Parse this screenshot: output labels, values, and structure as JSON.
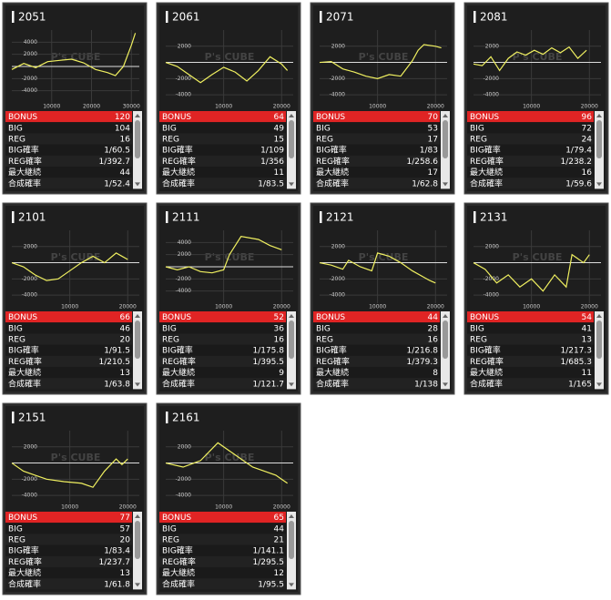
{
  "watermark": "P's CUBE",
  "row_labels": [
    "BONUS",
    "BIG",
    "REG",
    "BIG確率",
    "REG確率",
    "最大継続",
    "合成確率"
  ],
  "cards": [
    {
      "id": "2051",
      "chart": {
        "type": "line",
        "color": "#f0f060",
        "xlim": [
          0,
          32000
        ],
        "xticks": [
          10000,
          20000,
          30000
        ],
        "ylim": [
          -6000,
          6000
        ],
        "yticks": [
          4000,
          2000,
          -2000,
          -4000
        ],
        "x": [
          0,
          3000,
          6000,
          9000,
          12000,
          15000,
          18000,
          21000,
          24000,
          26000,
          28000,
          30000,
          31000
        ],
        "y": [
          -500,
          500,
          -200,
          800,
          1000,
          1200,
          600,
          -500,
          -1000,
          -1500,
          0,
          3500,
          5500
        ]
      },
      "stats": [
        120,
        104,
        16,
        "1/60.5",
        "1/392.7",
        44,
        "1/52.4"
      ]
    },
    {
      "id": "2061",
      "chart": {
        "type": "line",
        "color": "#f0f060",
        "xlim": [
          0,
          22000
        ],
        "xticks": [
          10000,
          20000
        ],
        "ylim": [
          -5000,
          4000
        ],
        "yticks": [
          2000,
          -2000,
          -4000
        ],
        "x": [
          0,
          2000,
          4000,
          6000,
          8000,
          10000,
          12000,
          14000,
          16000,
          18000,
          20000,
          21000
        ],
        "y": [
          0,
          -500,
          -1500,
          -2500,
          -1500,
          -600,
          -1200,
          -2300,
          -1000,
          700,
          -200,
          -1000
        ]
      },
      "stats": [
        64,
        49,
        15,
        "1/109",
        "1/356",
        11,
        "1/83.5"
      ]
    },
    {
      "id": "2071",
      "chart": {
        "type": "line",
        "color": "#f0f060",
        "xlim": [
          0,
          22000
        ],
        "xticks": [
          10000,
          20000
        ],
        "ylim": [
          -5000,
          4000
        ],
        "yticks": [
          2000,
          -2000,
          -4000
        ],
        "x": [
          0,
          2000,
          4000,
          6000,
          8000,
          10000,
          12000,
          14000,
          16000,
          17000,
          18000,
          20000,
          21000
        ],
        "y": [
          0,
          100,
          -800,
          -1200,
          -1700,
          -2000,
          -1500,
          -1700,
          200,
          1500,
          2200,
          2000,
          1800
        ]
      },
      "stats": [
        70,
        53,
        17,
        "1/83",
        "1/258.6",
        17,
        "1/62.8"
      ]
    },
    {
      "id": "2081",
      "chart": {
        "type": "line",
        "color": "#f0f060",
        "xlim": [
          0,
          22000
        ],
        "xticks": [
          10000,
          20000
        ],
        "ylim": [
          -5000,
          4000
        ],
        "yticks": [
          2000,
          -2000,
          -4000
        ],
        "x": [
          0,
          1500,
          3000,
          4500,
          6000,
          7500,
          9000,
          10500,
          12000,
          13500,
          15000,
          16500,
          18000,
          19500
        ],
        "y": [
          -200,
          -400,
          700,
          -1000,
          500,
          1300,
          900,
          1500,
          1000,
          1800,
          1200,
          1900,
          500,
          1500
        ]
      },
      "stats": [
        96,
        72,
        24,
        "1/79.4",
        "1/238.2",
        16,
        "1/59.6"
      ]
    },
    {
      "id": "2101",
      "chart": {
        "type": "line",
        "color": "#f0f060",
        "xlim": [
          0,
          22000
        ],
        "xticks": [
          10000,
          20000
        ],
        "ylim": [
          -5000,
          4000
        ],
        "yticks": [
          2000,
          -2000,
          -4000
        ],
        "x": [
          0,
          2000,
          4000,
          6000,
          8000,
          10000,
          12000,
          14000,
          16000,
          18000,
          19000,
          20000
        ],
        "y": [
          0,
          -500,
          -1500,
          -2200,
          -2000,
          -1000,
          0,
          800,
          0,
          1200,
          800,
          400
        ]
      },
      "stats": [
        66,
        46,
        20,
        "1/91.5",
        "1/210.5",
        13,
        "1/63.8"
      ]
    },
    {
      "id": "2111",
      "chart": {
        "type": "line",
        "color": "#f0f060",
        "xlim": [
          0,
          22000
        ],
        "xticks": [
          10000,
          20000
        ],
        "ylim": [
          -6000,
          6000
        ],
        "yticks": [
          4000,
          2000,
          -2000,
          -4000
        ],
        "x": [
          0,
          2000,
          4000,
          6000,
          8000,
          10000,
          11000,
          13000,
          16000,
          18000,
          20000
        ],
        "y": [
          0,
          -500,
          0,
          -800,
          -1000,
          -500,
          2000,
          5000,
          4500,
          3500,
          2800
        ]
      },
      "stats": [
        52,
        36,
        16,
        "1/175.8",
        "1/395.5",
        9,
        "1/121.7"
      ]
    },
    {
      "id": "2121",
      "chart": {
        "type": "line",
        "color": "#f0f060",
        "xlim": [
          0,
          22000
        ],
        "xticks": [
          10000,
          20000
        ],
        "ylim": [
          -5000,
          4000
        ],
        "yticks": [
          2000,
          -2000,
          -4000
        ],
        "x": [
          0,
          2000,
          4000,
          5000,
          7000,
          9000,
          10000,
          12000,
          14000,
          16000,
          19000,
          20000
        ],
        "y": [
          0,
          -300,
          -800,
          300,
          -500,
          -1000,
          1200,
          800,
          0,
          -1000,
          -2200,
          -2500
        ]
      },
      "stats": [
        44,
        28,
        16,
        "1/216.8",
        "1/379.3",
        8,
        "1/138"
      ]
    },
    {
      "id": "2131",
      "chart": {
        "type": "line",
        "color": "#f0f060",
        "xlim": [
          0,
          22000
        ],
        "xticks": [
          10000,
          20000
        ],
        "ylim": [
          -5000,
          4000
        ],
        "yticks": [
          2000,
          -2000,
          -4000
        ],
        "x": [
          0,
          2000,
          4000,
          6000,
          8000,
          10000,
          12000,
          14000,
          16000,
          17000,
          19000,
          20000
        ],
        "y": [
          0,
          -800,
          -2500,
          -1500,
          -3000,
          -2000,
          -3500,
          -1500,
          -3000,
          1000,
          0,
          1000
        ]
      },
      "stats": [
        54,
        41,
        13,
        "1/217.3",
        "1/685.3",
        11,
        "1/165"
      ]
    },
    {
      "id": "2151",
      "chart": {
        "type": "line",
        "color": "#f0f060",
        "xlim": [
          0,
          22000
        ],
        "xticks": [
          10000,
          20000
        ],
        "ylim": [
          -5000,
          4000
        ],
        "yticks": [
          2000,
          -2000,
          -4000
        ],
        "x": [
          0,
          2000,
          4000,
          6000,
          9000,
          12000,
          14000,
          16000,
          18000,
          19000,
          20000
        ],
        "y": [
          0,
          -1000,
          -1500,
          -2000,
          -2300,
          -2500,
          -3000,
          -1000,
          500,
          -200,
          500
        ]
      },
      "stats": [
        77,
        57,
        20,
        "1/83.4",
        "1/237.7",
        13,
        "1/61.8"
      ]
    },
    {
      "id": "2161",
      "chart": {
        "type": "line",
        "color": "#f0f060",
        "xlim": [
          0,
          22000
        ],
        "xticks": [
          10000,
          20000
        ],
        "ylim": [
          -5000,
          4000
        ],
        "yticks": [
          2000,
          -2000,
          -4000
        ],
        "x": [
          0,
          3000,
          6000,
          9000,
          11000,
          13000,
          15000,
          17000,
          19000,
          20000,
          21000
        ],
        "y": [
          0,
          -500,
          300,
          2500,
          1500,
          500,
          -500,
          -1000,
          -1500,
          -2000,
          -2500
        ]
      },
      "stats": [
        65,
        44,
        21,
        "1/141.1",
        "1/295.5",
        12,
        "1/95.5"
      ]
    }
  ]
}
